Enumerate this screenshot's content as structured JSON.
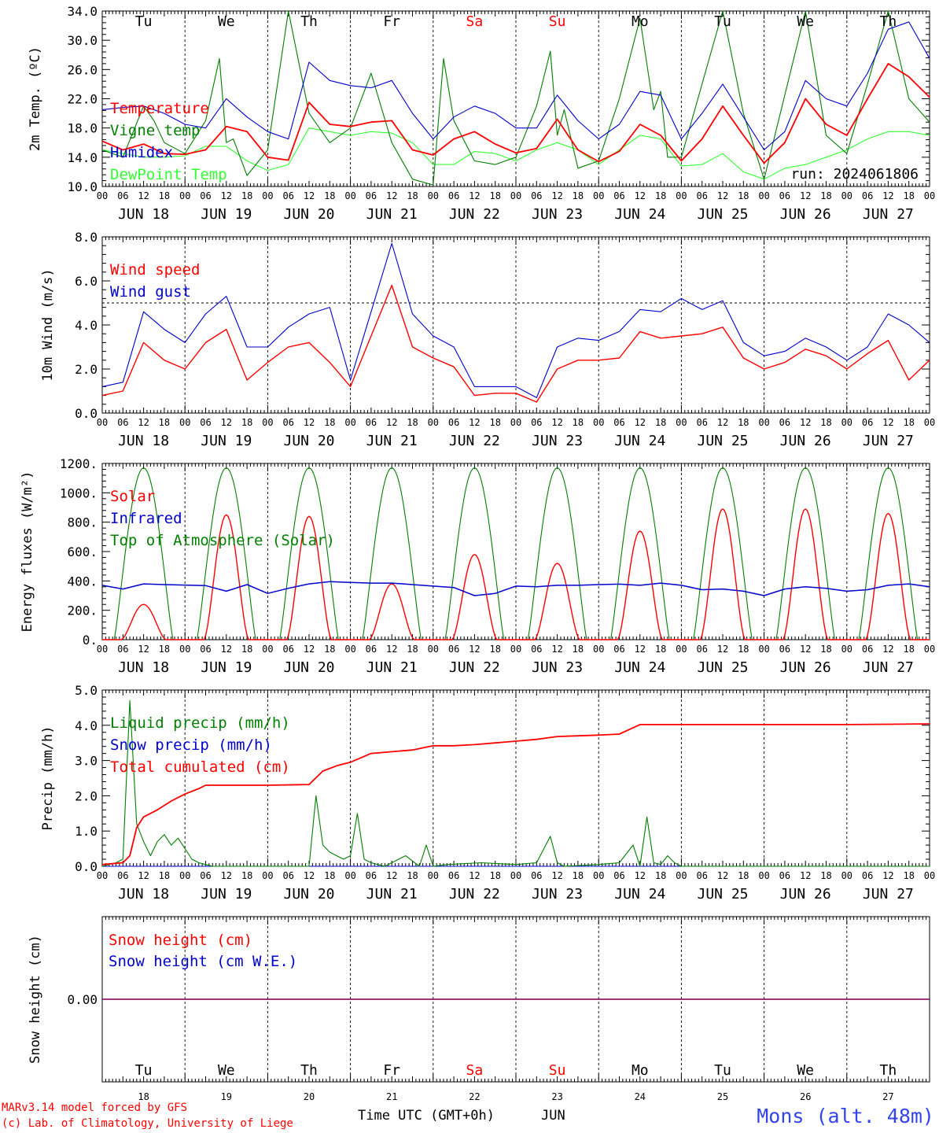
{
  "page_footer": {
    "credit_line1": "MARv3.14 model forced by GFS",
    "credit_line2": "(c) Lab. of Climatology, University of Liege",
    "x_axis_title": "Time UTC (GMT+0h)",
    "month": "JUN",
    "location": "Mons (alt. 48m)"
  },
  "days": {
    "weekday_labels": [
      "Tu",
      "We",
      "Th",
      "Fr",
      "Sa",
      "Su",
      "Mo",
      "Tu",
      "We",
      "Th"
    ],
    "weekday_colors": [
      "#000000",
      "#000000",
      "#000000",
      "#000000",
      "#ff0000",
      "#ff0000",
      "#000000",
      "#000000",
      "#000000",
      "#000000"
    ],
    "date_labels": [
      "JUN 18",
      "JUN 19",
      "JUN 20",
      "JUN 21",
      "JUN 22",
      "JUN 23",
      "JUN 24",
      "JUN 25",
      "JUN 26",
      "JUN 27"
    ],
    "day_numbers": [
      "18",
      "19",
      "20",
      "21",
      "22",
      "23",
      "24",
      "25",
      "26",
      "27"
    ],
    "hour_labels": [
      "00",
      "06",
      "12",
      "18"
    ],
    "end_hour_label": "00"
  },
  "chart_data": [
    {
      "type": "line",
      "ylabel": "2m Temp. (ºC)",
      "ylim": [
        10.0,
        34.0
      ],
      "yticks": [
        "10.0",
        "14.0",
        "18.0",
        "22.0",
        "26.0",
        "30.0",
        "34.0"
      ],
      "annotation": "run: 2024061806",
      "x_unit": "hours since JUN 18 00 UTC",
      "series": [
        {
          "name": "Temperature",
          "color": "#ff0000",
          "x": [
            0,
            6,
            12,
            18,
            24,
            30,
            36,
            42,
            48,
            54,
            60,
            66,
            72,
            78,
            84,
            90,
            96,
            102,
            108,
            114,
            120,
            126,
            132,
            138,
            144,
            150,
            156,
            162,
            168,
            174,
            180,
            186,
            192,
            198,
            204,
            210,
            216,
            222,
            228,
            234,
            240
          ],
          "y": [
            16.2,
            15.0,
            15.8,
            14.5,
            14.4,
            15.0,
            18.2,
            17.5,
            14.0,
            13.6,
            21.5,
            18.5,
            18.2,
            18.8,
            19.0,
            15.0,
            14.3,
            16.5,
            17.5,
            15.8,
            14.6,
            15.2,
            19.2,
            15.0,
            13.4,
            14.8,
            18.5,
            17.0,
            13.5,
            16.5,
            21.0,
            17.0,
            13.2,
            16.0,
            22.0,
            18.5,
            17.0,
            22.0,
            26.8,
            25.0,
            22.2
          ]
        },
        {
          "name": "Vigne temp",
          "color": "#007f00",
          "x": [
            0,
            6,
            12,
            15,
            18,
            24,
            30,
            34,
            36,
            38,
            42,
            48,
            54,
            60,
            66,
            72,
            78,
            84,
            90,
            96,
            99,
            102,
            108,
            114,
            120,
            126,
            130,
            132,
            134,
            138,
            144,
            150,
            156,
            160,
            162,
            164,
            168,
            174,
            180,
            186,
            192,
            198,
            204,
            210,
            216,
            222,
            228,
            234,
            240
          ],
          "y": [
            15.0,
            14.0,
            21.0,
            19.0,
            16.0,
            14.5,
            19.0,
            27.5,
            16.0,
            16.5,
            11.5,
            15.0,
            34.0,
            20.0,
            16.0,
            18.0,
            25.5,
            16.0,
            11.0,
            10.2,
            27.5,
            19.0,
            13.5,
            13.0,
            14.0,
            21.0,
            28.5,
            17.0,
            20.5,
            12.5,
            13.5,
            22.0,
            33.0,
            20.5,
            23.0,
            14.0,
            14.0,
            24.0,
            34.0,
            20.0,
            11.0,
            22.5,
            34.0,
            17.0,
            14.5,
            24.0,
            34.0,
            22.0,
            18.8
          ]
        },
        {
          "name": "Humidex",
          "color": "#0000cc",
          "x": [
            0,
            6,
            12,
            18,
            24,
            30,
            36,
            42,
            48,
            54,
            60,
            66,
            72,
            78,
            84,
            90,
            96,
            102,
            108,
            114,
            120,
            126,
            132,
            138,
            144,
            150,
            156,
            162,
            168,
            174,
            180,
            186,
            192,
            198,
            204,
            210,
            216,
            222,
            228,
            234,
            240
          ],
          "y": [
            20.5,
            20.8,
            21.0,
            20.0,
            18.5,
            18.0,
            22.0,
            19.5,
            17.5,
            16.5,
            27.0,
            24.5,
            23.8,
            23.5,
            24.5,
            20.0,
            16.5,
            19.5,
            21.0,
            20.0,
            18.0,
            18.0,
            22.5,
            19.0,
            16.5,
            18.5,
            23.0,
            22.5,
            16.5,
            20.0,
            24.0,
            19.5,
            15.0,
            17.5,
            24.5,
            22.0,
            21.0,
            25.5,
            31.5,
            32.5,
            27.5
          ]
        },
        {
          "name": "DewPoint Temp",
          "color": "#33ff33",
          "x": [
            0,
            6,
            12,
            18,
            24,
            30,
            36,
            42,
            48,
            54,
            60,
            66,
            72,
            78,
            84,
            90,
            96,
            102,
            108,
            114,
            120,
            126,
            132,
            138,
            144,
            150,
            156,
            162,
            168,
            174,
            180,
            186,
            192,
            198,
            204,
            210,
            216,
            222,
            228,
            234,
            240
          ],
          "y": [
            15.0,
            14.5,
            14.0,
            14.0,
            14.2,
            15.5,
            15.5,
            13.5,
            12.2,
            13.0,
            18.0,
            17.5,
            17.0,
            17.5,
            17.3,
            16.0,
            13.0,
            13.0,
            14.8,
            14.5,
            13.5,
            15.0,
            16.0,
            15.0,
            13.0,
            15.0,
            17.0,
            16.5,
            12.8,
            13.0,
            14.5,
            12.0,
            11.0,
            12.5,
            13.0,
            14.0,
            15.0,
            16.5,
            17.5,
            17.5,
            17.0
          ]
        }
      ]
    },
    {
      "type": "line",
      "ylabel": "10m Wind (m/s)",
      "ylim": [
        0.0,
        8.0
      ],
      "yticks": [
        "0.0",
        "2.0",
        "4.0",
        "6.0",
        "8.0"
      ],
      "reference_line": 5.0,
      "series": [
        {
          "name": "Wind speed",
          "color": "#ff0000",
          "x": [
            0,
            6,
            12,
            18,
            24,
            30,
            36,
            42,
            48,
            54,
            60,
            66,
            72,
            78,
            84,
            90,
            96,
            102,
            108,
            114,
            120,
            126,
            132,
            138,
            144,
            150,
            156,
            162,
            168,
            174,
            180,
            186,
            192,
            198,
            204,
            210,
            216,
            222,
            228,
            234,
            240
          ],
          "y": [
            0.8,
            1.0,
            3.2,
            2.4,
            2.0,
            3.2,
            3.8,
            1.5,
            2.3,
            3.0,
            3.2,
            2.3,
            1.2,
            3.5,
            5.8,
            3.0,
            2.5,
            2.1,
            0.8,
            0.9,
            0.9,
            0.5,
            2.0,
            2.4,
            2.4,
            2.5,
            3.7,
            3.4,
            3.5,
            3.6,
            3.9,
            2.5,
            2.0,
            2.3,
            2.9,
            2.6,
            2.0,
            2.7,
            3.3,
            1.5,
            2.4
          ]
        },
        {
          "name": "Wind gust",
          "color": "#0000cc",
          "x": [
            0,
            6,
            12,
            18,
            24,
            30,
            36,
            42,
            48,
            54,
            60,
            66,
            72,
            78,
            84,
            90,
            96,
            102,
            108,
            114,
            120,
            126,
            132,
            138,
            144,
            150,
            156,
            162,
            168,
            174,
            180,
            186,
            192,
            198,
            204,
            210,
            216,
            222,
            228,
            234,
            240
          ],
          "y": [
            1.2,
            1.4,
            4.6,
            3.8,
            3.2,
            4.5,
            5.3,
            3.0,
            3.0,
            3.9,
            4.5,
            4.8,
            1.5,
            4.6,
            7.7,
            4.5,
            3.5,
            3.0,
            1.2,
            1.2,
            1.2,
            0.7,
            3.0,
            3.4,
            3.3,
            3.7,
            4.7,
            4.6,
            5.2,
            4.7,
            5.1,
            3.2,
            2.6,
            2.8,
            3.4,
            3.0,
            2.4,
            3.0,
            4.5,
            4.0,
            3.2
          ]
        }
      ]
    },
    {
      "type": "line",
      "ylabel": "Energy fluxes (W/m²)",
      "ylim": [
        0,
        1200
      ],
      "yticks": [
        "0.",
        "200.",
        "400.",
        "600.",
        "800.",
        "1000.",
        "1200."
      ],
      "series": [
        {
          "name": "Solar",
          "color": "#ff0000",
          "peaks": [
            240,
            850,
            840,
            380,
            580,
            520,
            740,
            890,
            890,
            860
          ]
        },
        {
          "name": "Infrared",
          "color": "#0000cc",
          "x": [
            0,
            6,
            12,
            18,
            24,
            30,
            36,
            42,
            48,
            54,
            60,
            66,
            72,
            78,
            84,
            90,
            96,
            102,
            108,
            114,
            120,
            126,
            132,
            138,
            144,
            150,
            156,
            162,
            168,
            174,
            180,
            186,
            192,
            198,
            204,
            210,
            216,
            222,
            228,
            234,
            240
          ],
          "y": [
            370,
            345,
            380,
            375,
            372,
            368,
            330,
            375,
            315,
            350,
            380,
            395,
            390,
            385,
            385,
            375,
            365,
            355,
            300,
            315,
            365,
            360,
            370,
            370,
            375,
            378,
            370,
            385,
            370,
            340,
            345,
            330,
            300,
            345,
            360,
            350,
            330,
            340,
            370,
            380,
            360
          ]
        },
        {
          "name": "Top of Atmosphere (Solar)",
          "color": "#007f00",
          "peak": 1170
        }
      ]
    },
    {
      "type": "line",
      "ylabel": "Precip (mm/h)",
      "ylim": [
        0.0,
        5.0
      ],
      "yticks": [
        "0.0",
        "1.0",
        "2.0",
        "3.0",
        "4.0",
        "5.0"
      ],
      "series": [
        {
          "name": "Liquid precip (mm/h)",
          "color": "#007f00",
          "x": [
            0,
            4,
            6,
            8,
            10,
            12,
            14,
            16,
            18,
            20,
            22,
            24,
            26,
            28,
            30,
            32,
            34,
            60,
            62,
            64,
            66,
            68,
            70,
            72,
            74,
            76,
            78,
            80,
            82,
            84,
            88,
            92,
            94,
            96,
            100,
            110,
            120,
            126,
            130,
            132,
            134,
            144,
            150,
            154,
            156,
            158,
            160,
            162,
            164,
            166,
            168,
            180,
            240
          ],
          "y": [
            0.0,
            0.1,
            0.2,
            4.7,
            1.2,
            0.7,
            0.3,
            0.7,
            0.9,
            0.6,
            0.8,
            0.5,
            0.2,
            0.1,
            0.05,
            0.0,
            0.0,
            0.0,
            2.0,
            0.6,
            0.4,
            0.3,
            0.2,
            0.3,
            1.5,
            0.2,
            0.1,
            0.05,
            0.0,
            0.1,
            0.3,
            0.0,
            0.6,
            0.0,
            0.05,
            0.1,
            0.05,
            0.1,
            0.85,
            0.1,
            0.0,
            0.05,
            0.1,
            0.6,
            0.0,
            1.4,
            0.1,
            0.05,
            0.3,
            0.1,
            0.0,
            0.0,
            0.0
          ]
        },
        {
          "name": "Snow precip (mm/h)",
          "color": "#0000cc",
          "x": [
            0,
            240
          ],
          "y": [
            0.0,
            0.0
          ]
        },
        {
          "name": "Total cumulated (cm)",
          "color": "#ff0000",
          "x": [
            0,
            6,
            8,
            10,
            12,
            16,
            20,
            24,
            28,
            30,
            36,
            48,
            60,
            64,
            68,
            72,
            78,
            84,
            90,
            96,
            102,
            108,
            114,
            120,
            126,
            132,
            138,
            144,
            150,
            156,
            168,
            180,
            192,
            204,
            216,
            228,
            240
          ],
          "y": [
            0.05,
            0.1,
            0.3,
            1.1,
            1.4,
            1.6,
            1.85,
            2.05,
            2.2,
            2.3,
            2.3,
            2.3,
            2.32,
            2.7,
            2.85,
            2.95,
            3.2,
            3.25,
            3.3,
            3.42,
            3.42,
            3.45,
            3.5,
            3.55,
            3.6,
            3.68,
            3.7,
            3.72,
            3.75,
            4.02,
            4.02,
            4.02,
            4.02,
            4.02,
            4.02,
            4.03,
            4.04
          ]
        }
      ]
    },
    {
      "type": "line",
      "ylabel": "Snow height (cm)",
      "yticks": [
        "0.00"
      ],
      "series": [
        {
          "name": "Snow height (cm)",
          "color": "#ff0000",
          "x": [
            0,
            240
          ],
          "y": [
            0.0,
            0.0
          ]
        },
        {
          "name": "Snow height (cm W.E.)",
          "color": "#0000cc",
          "x": [
            0,
            240
          ],
          "y": [
            0.0,
            0.0
          ]
        }
      ]
    }
  ]
}
